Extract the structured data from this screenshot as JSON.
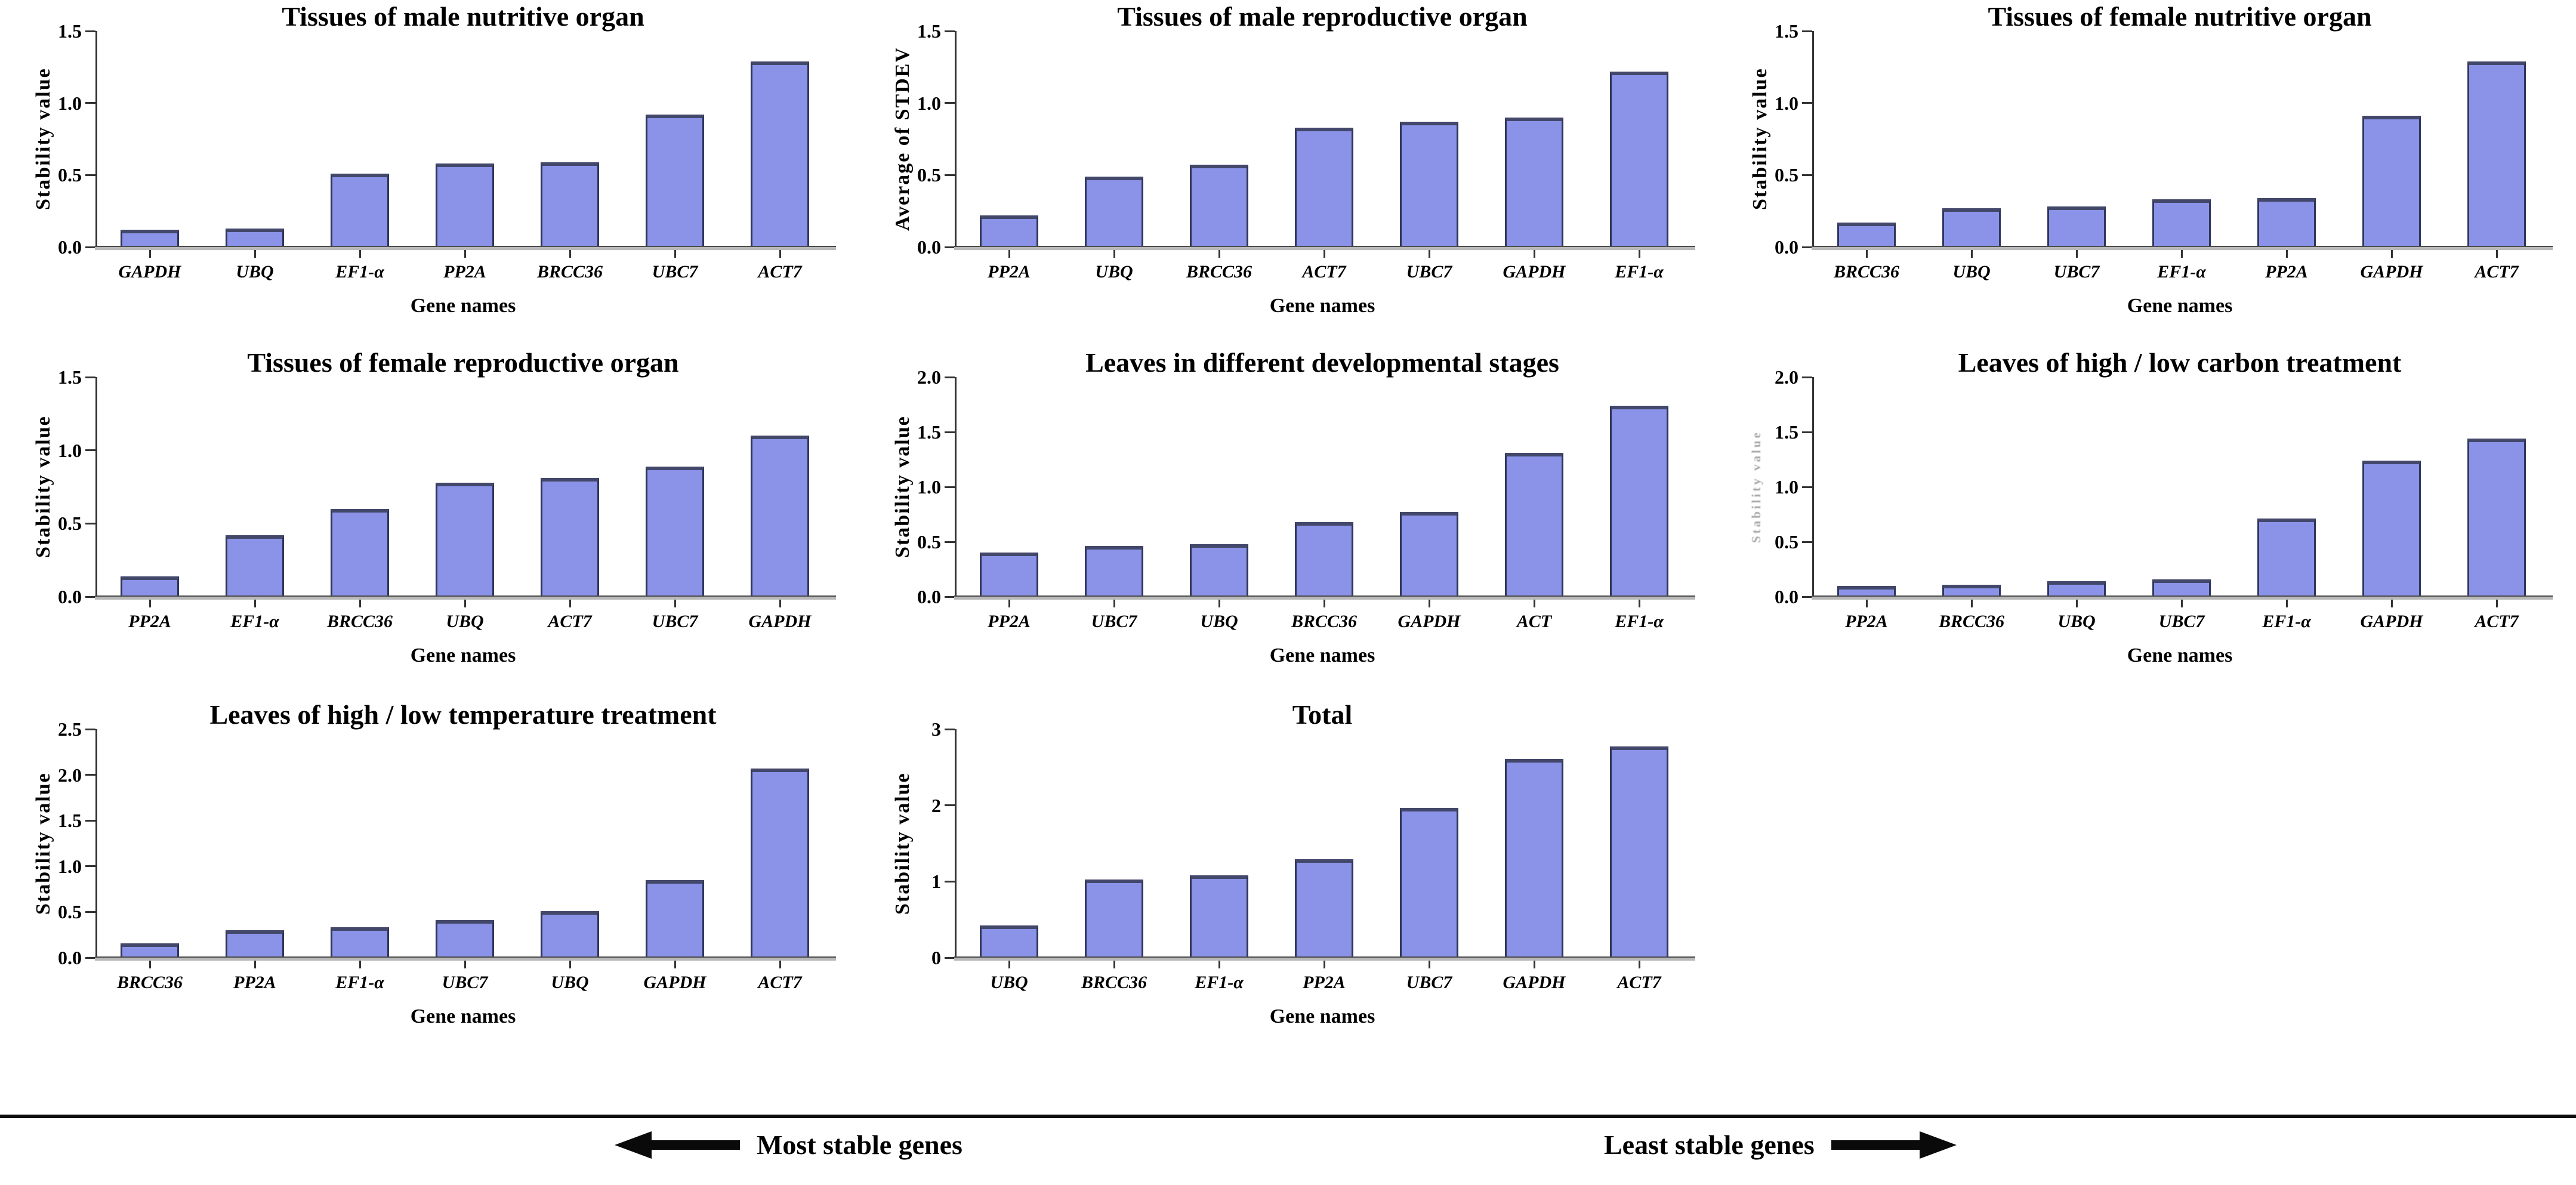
{
  "colors": {
    "bar_fill": "#8A93E8",
    "bar_border": "#30365A",
    "bar_top_cap": "#43486B",
    "axis": "#333333",
    "baseline_dark": "#4C4C4C",
    "baseline_light": "#B9B9B9",
    "text": "#000000",
    "background": "#FFFFFF"
  },
  "chart_data": [
    {
      "type": "bar",
      "title": "Tissues of male nutritive organ",
      "ylabel": "Stability value",
      "ylabel_degraded": false,
      "xlabel": "Gene names",
      "ylim": [
        0,
        1.5
      ],
      "grid": false,
      "legend": "none",
      "ytick_values": [
        0,
        0.5,
        1.0,
        1.5
      ],
      "ytick_labels": [
        "0.0",
        "0.5",
        "1.0",
        "1.5"
      ],
      "categories": [
        "GAPDH",
        "UBQ",
        "EF1-α",
        "PP2A",
        "BRCC36",
        "UBC7",
        "ACT7"
      ],
      "values": [
        0.12,
        0.13,
        0.51,
        0.58,
        0.59,
        0.92,
        1.29
      ]
    },
    {
      "type": "bar",
      "title": "Tissues of male reproductive organ",
      "ylabel": "Average of STDEV",
      "ylabel_degraded": false,
      "xlabel": "Gene names",
      "ylim": [
        0,
        1.5
      ],
      "grid": false,
      "legend": "none",
      "ytick_values": [
        0,
        0.5,
        1.0,
        1.5
      ],
      "ytick_labels": [
        "0.0",
        "0.5",
        "1.0",
        "1.5"
      ],
      "categories": [
        "PP2A",
        "UBQ",
        "BRCC36",
        "ACT7",
        "UBC7",
        "GAPDH",
        "EF1-α"
      ],
      "values": [
        0.22,
        0.49,
        0.57,
        0.83,
        0.87,
        0.9,
        1.22
      ]
    },
    {
      "type": "bar",
      "title": "Tissues of female nutritive organ",
      "ylabel": "Stability value",
      "ylabel_degraded": false,
      "xlabel": "Gene names",
      "ylim": [
        0,
        1.5
      ],
      "grid": false,
      "legend": "none",
      "ytick_values": [
        0,
        0.5,
        1.0,
        1.5
      ],
      "ytick_labels": [
        "0.0",
        "0.5",
        "1.0",
        "1.5"
      ],
      "categories": [
        "BRCC36",
        "UBQ",
        "UBC7",
        "EF1-α",
        "PP2A",
        "GAPDH",
        "ACT7"
      ],
      "values": [
        0.17,
        0.27,
        0.28,
        0.33,
        0.34,
        0.91,
        1.29
      ]
    },
    {
      "type": "bar",
      "title": "Tissues of female reproductive organ",
      "ylabel": "Stability value",
      "ylabel_degraded": false,
      "xlabel": "Gene names",
      "ylim": [
        0,
        1.5
      ],
      "grid": false,
      "legend": "none",
      "ytick_values": [
        0,
        0.5,
        1.0,
        1.5
      ],
      "ytick_labels": [
        "0.0",
        "0.5",
        "1.0",
        "1.5"
      ],
      "categories": [
        "PP2A",
        "EF1-α",
        "BRCC36",
        "UBQ",
        "ACT7",
        "UBC7",
        "GAPDH"
      ],
      "values": [
        0.14,
        0.42,
        0.6,
        0.78,
        0.81,
        0.89,
        1.1
      ]
    },
    {
      "type": "bar",
      "title": "Leaves in different developmental stages",
      "ylabel": "Stability value",
      "ylabel_degraded": false,
      "xlabel": "Gene names",
      "ylim": [
        0,
        2.0
      ],
      "grid": false,
      "legend": "none",
      "ytick_values": [
        0,
        0.5,
        1.0,
        1.5,
        2.0
      ],
      "ytick_labels": [
        "0.0",
        "0.5",
        "1.0",
        "1.5",
        "2.0"
      ],
      "categories": [
        "PP2A",
        "UBC7",
        "UBQ",
        "BRCC36",
        "GAPDH",
        "ACT",
        "EF1-α"
      ],
      "values": [
        0.4,
        0.46,
        0.48,
        0.68,
        0.77,
        1.31,
        1.74
      ]
    },
    {
      "type": "bar",
      "title": "Leaves of high / low carbon treatment",
      "ylabel": "Stability value",
      "ylabel_degraded": true,
      "xlabel": "Gene names",
      "ylim": [
        0,
        2.0
      ],
      "grid": false,
      "legend": "none",
      "ytick_values": [
        0,
        0.5,
        1.0,
        1.5,
        2.0
      ],
      "ytick_labels": [
        "0.0",
        "0.5",
        "1.0",
        "1.5",
        "2.0"
      ],
      "categories": [
        "PP2A",
        "BRCC36",
        "UBQ",
        "UBC7",
        "EF1-α",
        "GAPDH",
        "ACT7"
      ],
      "values": [
        0.1,
        0.11,
        0.14,
        0.16,
        0.71,
        1.24,
        1.44
      ]
    },
    {
      "type": "bar",
      "title": "Leaves of high / low temperature treatment",
      "ylabel": "Stability value",
      "ylabel_degraded": false,
      "xlabel": "Gene names",
      "ylim": [
        0,
        2.5
      ],
      "grid": false,
      "legend": "none",
      "ytick_values": [
        0,
        0.5,
        1.0,
        1.5,
        2.0,
        2.5
      ],
      "ytick_labels": [
        "0.0",
        "0.5",
        "1.0",
        "1.5",
        "2.0",
        "2.5"
      ],
      "categories": [
        "BRCC36",
        "PP2A",
        "EF1-α",
        "UBC7",
        "UBQ",
        "GAPDH",
        "ACT7"
      ],
      "values": [
        0.16,
        0.3,
        0.33,
        0.41,
        0.51,
        0.85,
        2.07
      ]
    },
    {
      "type": "bar",
      "title": "Total",
      "ylabel": "Stability value",
      "ylabel_degraded": false,
      "xlabel": "Gene names",
      "ylim": [
        0,
        3
      ],
      "grid": false,
      "legend": "none",
      "ytick_values": [
        0,
        1,
        2,
        3
      ],
      "ytick_labels": [
        "0",
        "1",
        "2",
        "3"
      ],
      "categories": [
        "UBQ",
        "BRCC36",
        "EF1-α",
        "PP2A",
        "UBC7",
        "GAPDH",
        "ACT7"
      ],
      "values": [
        0.42,
        1.03,
        1.08,
        1.29,
        1.97,
        2.61,
        2.77
      ]
    }
  ],
  "footer": {
    "most_stable_label": "Most stable genes",
    "least_stable_label": "Least stable genes",
    "arrow_left_icon": "arrow-left",
    "arrow_right_icon": "arrow-right"
  }
}
